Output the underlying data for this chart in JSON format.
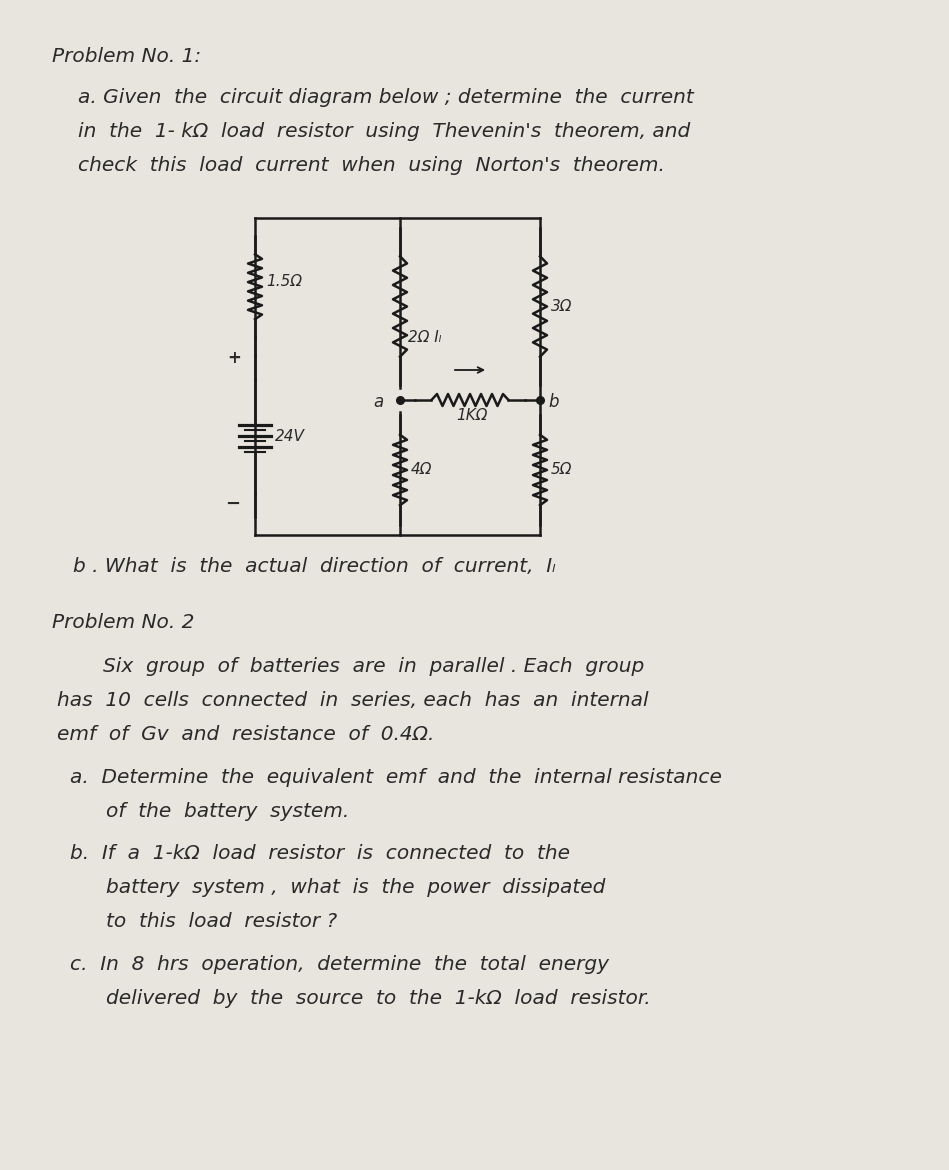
{
  "bg_color": "#c8c8c8",
  "paper_color": "#e8e5de",
  "text_color": "#2a2a2a",
  "title1": "Problem No. 1:",
  "p1a_line1": "a. Given  the  circuit diagram below ; determine  the  current",
  "p1a_line2": "in  the  1- kΩ  load  resistor  using  Thevenin's  theorem, and",
  "p1a_line3": "check  this  load  current  when  using  Norton's  theorem.",
  "p1b": "b . What  is  the  actual  direction  of  current,  Iₗ",
  "title2": "Problem No. 2",
  "p2_intro1": "Six  group  of  batteries  are  in  parallel . Each  group",
  "p2_intro2": "has  10  cells  connected  in  series, each  has  an  internal",
  "p2_intro3": "emf  of  Gv  and  resistance  of  0.4Ω.",
  "p2a_line1": "a.  Determine  the  equivalent  emf  and  the  internal resistance",
  "p2a_line2": "of  the  battery  system.",
  "p2b_line1": "b.  If  a  1-kΩ  load  resistor  is  connected  to  the",
  "p2b_line2": "battery  system ,  what  is  the  power  dissipated",
  "p2b_line3": "to  this  load  resistor ?",
  "p2c_line1": "c.  In  8  hrs  operation,  determine  the  total  energy",
  "p2c_line2": "delivered  by  the  source  to  the  1-kΩ  load  resistor.",
  "circuit": {
    "R1": "1.5Ω",
    "R2": "2Ω",
    "IL": "Iₗ",
    "R3": "3Ω",
    "V1": "24V",
    "R4": "4Ω",
    "RL": "1KΩ",
    "R5": "5Ω",
    "a_label": "a",
    "b_label": "b"
  },
  "figw": 9.49,
  "figh": 11.7,
  "dpi": 100
}
